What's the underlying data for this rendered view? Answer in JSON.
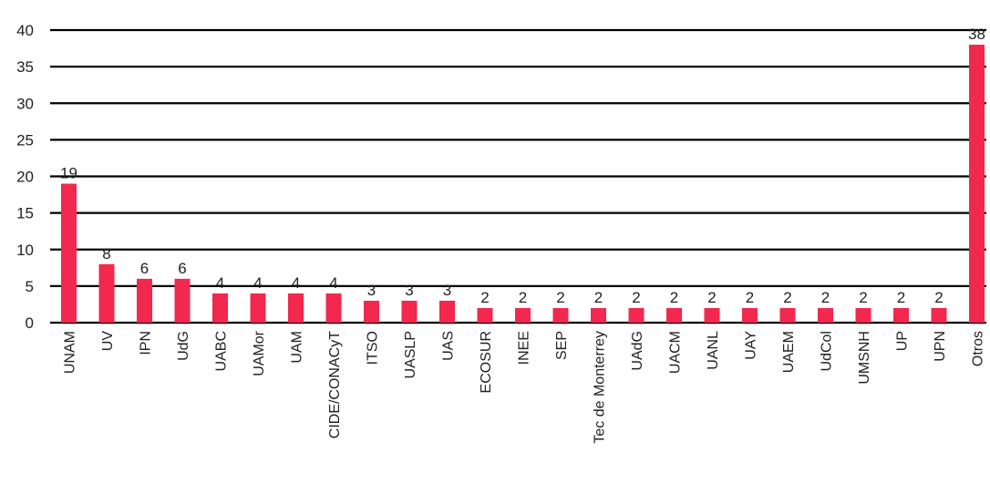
{
  "chart_data": {
    "type": "bar",
    "categories": [
      "UNAM",
      "UV",
      "IPN",
      "UdG",
      "UABC",
      "UAMor",
      "UAM",
      "CIDE/CONACyT",
      "ITSO",
      "UASLP",
      "UAS",
      "ECOSUR",
      "INEE",
      "SEP",
      "Tec de Monterrey",
      "UAdG",
      "UACM",
      "UANL",
      "UAY",
      "UAEM",
      "UdCol",
      "UMSNH",
      "UP",
      "UPN",
      "Otros"
    ],
    "values": [
      19,
      8,
      6,
      6,
      4,
      4,
      4,
      4,
      3,
      3,
      3,
      2,
      2,
      2,
      2,
      2,
      2,
      2,
      2,
      2,
      2,
      2,
      2,
      2,
      38
    ],
    "data_labels": [
      "19",
      "8",
      "6",
      "6",
      "4",
      "4",
      "4",
      "4",
      "3",
      "3",
      "3",
      "2",
      "2",
      "2",
      "2",
      "2",
      "2",
      "2",
      "2",
      "2",
      "2",
      "2",
      "2",
      "2",
      "38"
    ],
    "y_ticks": [
      "0",
      "5",
      "10",
      "15",
      "20",
      "25",
      "30",
      "35",
      "40"
    ],
    "ylim": [
      0,
      40
    ],
    "grid": true,
    "bar_color": "#f2284e",
    "grid_color": "#000000"
  }
}
